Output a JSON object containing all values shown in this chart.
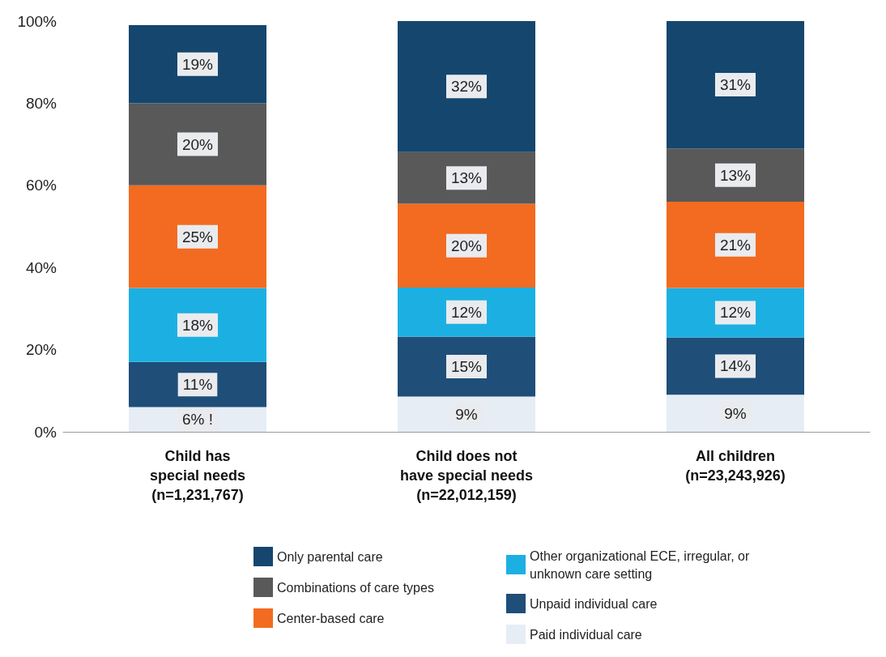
{
  "chart_data": {
    "type": "bar",
    "stacked": true,
    "categories": [
      "Child has\nspecial needs\n(n=1,231,767)",
      "Child does not\nhave special needs\n(n=22,012,159)",
      "All children\n(n=23,243,926)"
    ],
    "series": [
      {
        "name": "Paid individual care",
        "color": "#e6edf5",
        "values": [
          6,
          8.6,
          9
        ],
        "value_labels": [
          "6% !",
          "9%",
          "9%"
        ]
      },
      {
        "name": "Unpaid individual care",
        "color": "#1f4e79",
        "values": [
          11,
          14.6,
          14
        ],
        "value_labels": [
          "11%",
          "15%",
          "14%"
        ]
      },
      {
        "name": "Other organizational ECE, irregular, or unknown care setting",
        "color": "#1cb0e2",
        "values": [
          18,
          11.9,
          12
        ],
        "value_labels": [
          "18%",
          "12%",
          "12%"
        ]
      },
      {
        "name": "Center-based care",
        "color": "#f26b21",
        "values": [
          25,
          20.4,
          21
        ],
        "value_labels": [
          "25%",
          "20%",
          "21%"
        ]
      },
      {
        "name": "Combinations of care types",
        "color": "#595959",
        "values": [
          20,
          12.6,
          13
        ],
        "value_labels": [
          "20%",
          "13%",
          "13%"
        ]
      },
      {
        "name": "Only parental care",
        "color": "#15466e",
        "values": [
          19,
          31.9,
          31
        ],
        "value_labels": [
          "19%",
          "32%",
          "31%"
        ]
      }
    ],
    "ylim": [
      0,
      100
    ],
    "yticks": [
      {
        "value": 0,
        "label": "0%"
      },
      {
        "value": 20,
        "label": "20%"
      },
      {
        "value": 40,
        "label": "40%"
      },
      {
        "value": 60,
        "label": "60%"
      },
      {
        "value": 80,
        "label": "80%"
      },
      {
        "value": 100,
        "label": "100%"
      }
    ],
    "grid": false,
    "legend": "bottom"
  }
}
